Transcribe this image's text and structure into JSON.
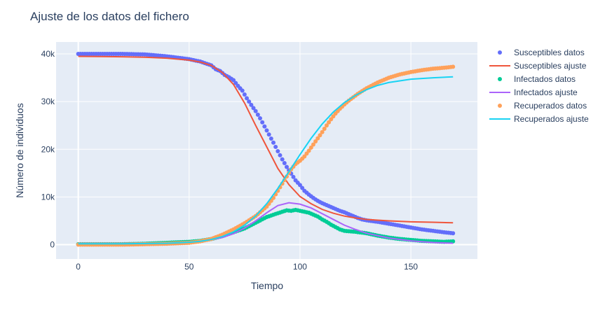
{
  "chart_data": {
    "type": "scatter",
    "title": "Ajuste de los datos del fichero",
    "xlabel": "Tiempo",
    "ylabel": "Número de individuos",
    "xlim": [
      -10,
      180
    ],
    "ylim": [
      -3000,
      42500
    ],
    "x_ticks": [
      0,
      50,
      100,
      150
    ],
    "x_tick_labels": [
      "0",
      "50",
      "100",
      "150"
    ],
    "y_ticks": [
      0,
      10000,
      20000,
      30000,
      40000
    ],
    "y_tick_labels": [
      "0",
      "10k",
      "20k",
      "30k",
      "40k"
    ],
    "grid": true,
    "legend_position": "right",
    "series": [
      {
        "name": "Susceptibles datos",
        "mode": "markers",
        "color": "#636efa",
        "x": [
          0,
          10,
          20,
          30,
          40,
          45,
          50,
          55,
          60,
          62,
          64,
          66,
          68,
          70,
          72,
          74,
          76,
          78,
          80,
          82,
          84,
          86,
          88,
          90,
          92,
          94,
          96,
          98,
          100,
          102,
          104,
          106,
          108,
          110,
          112,
          114,
          116,
          118,
          120,
          122,
          124,
          126,
          128,
          130,
          135,
          140,
          145,
          150,
          155,
          160,
          165,
          169
        ],
        "y": [
          40000,
          40000,
          40000,
          39900,
          39500,
          39200,
          38900,
          38400,
          37600,
          36800,
          36400,
          35600,
          35100,
          34500,
          33300,
          32300,
          30700,
          29300,
          28000,
          26500,
          24800,
          23100,
          21400,
          19600,
          17900,
          16300,
          14900,
          13500,
          12500,
          11300,
          10500,
          9800,
          9200,
          8700,
          8300,
          7900,
          7500,
          7100,
          6800,
          6400,
          6000,
          5600,
          5300,
          5100,
          4800,
          4400,
          4000,
          3600,
          3200,
          2900,
          2600,
          2400
        ]
      },
      {
        "name": "Susceptibles ajuste",
        "mode": "lines",
        "color": "#ef553b",
        "x": [
          0,
          10,
          20,
          30,
          40,
          50,
          55,
          60,
          65,
          70,
          75,
          80,
          85,
          90,
          95,
          100,
          105,
          110,
          115,
          120,
          125,
          130,
          140,
          150,
          160,
          169
        ],
        "y": [
          39500,
          39450,
          39400,
          39300,
          39100,
          38700,
          38300,
          37600,
          36100,
          33600,
          29700,
          25000,
          20500,
          16000,
          12600,
          10100,
          8600,
          7400,
          6600,
          6000,
          5600,
          5300,
          5000,
          4800,
          4700,
          4600
        ]
      },
      {
        "name": "Infectados datos",
        "mode": "markers",
        "color": "#00cc96",
        "x": [
          0,
          10,
          20,
          30,
          40,
          50,
          55,
          60,
          65,
          70,
          75,
          80,
          85,
          90,
          92,
          94,
          96,
          98,
          100,
          102,
          104,
          106,
          108,
          110,
          112,
          114,
          116,
          118,
          120,
          125,
          130,
          135,
          140,
          145,
          150,
          155,
          160,
          165,
          169
        ],
        "y": [
          100,
          100,
          100,
          200,
          400,
          600,
          800,
          1200,
          1800,
          2600,
          3400,
          4600,
          5800,
          6600,
          6900,
          7200,
          7100,
          7300,
          7100,
          6900,
          6700,
          6300,
          5900,
          5300,
          4800,
          4200,
          3700,
          3200,
          2900,
          2700,
          2400,
          1900,
          1500,
          1200,
          1000,
          800,
          700,
          600,
          700
        ]
      },
      {
        "name": "Infectados ajuste",
        "mode": "lines",
        "color": "#ab63fa",
        "x": [
          0,
          20,
          40,
          50,
          55,
          60,
          65,
          70,
          75,
          80,
          85,
          90,
          95,
          100,
          105,
          110,
          115,
          120,
          125,
          130,
          140,
          150,
          160,
          169
        ],
        "y": [
          300,
          300,
          400,
          500,
          700,
          1000,
          1500,
          2300,
          3500,
          5000,
          6700,
          8200,
          8800,
          8500,
          7700,
          6500,
          5300,
          4100,
          3200,
          2400,
          1400,
          800,
          450,
          300
        ]
      },
      {
        "name": "Recuperados datos",
        "mode": "markers",
        "color": "#ffa15a",
        "x": [
          0,
          10,
          20,
          30,
          40,
          50,
          55,
          60,
          65,
          70,
          75,
          80,
          85,
          88,
          90,
          92,
          94,
          96,
          98,
          100,
          102,
          104,
          106,
          108,
          110,
          112,
          114,
          116,
          118,
          120,
          122,
          124,
          126,
          128,
          130,
          135,
          140,
          145,
          150,
          155,
          160,
          165,
          169
        ],
        "y": [
          0,
          0,
          0,
          100,
          200,
          400,
          700,
          1200,
          2100,
          3200,
          4500,
          6000,
          8000,
          9800,
          11300,
          12800,
          14300,
          15800,
          16900,
          17600,
          18500,
          19700,
          21000,
          22300,
          23600,
          25000,
          26300,
          27500,
          28500,
          29400,
          30200,
          30900,
          31600,
          32200,
          32800,
          34000,
          35000,
          35700,
          36200,
          36600,
          36900,
          37100,
          37300
        ]
      },
      {
        "name": "Recuperados ajuste",
        "mode": "lines",
        "color": "#19d3f3",
        "x": [
          0,
          20,
          40,
          50,
          55,
          60,
          65,
          70,
          75,
          80,
          85,
          90,
          95,
          100,
          105,
          110,
          115,
          120,
          125,
          130,
          135,
          140,
          150,
          160,
          169
        ],
        "y": [
          200,
          200,
          300,
          500,
          700,
          1100,
          1700,
          2700,
          4100,
          6000,
          8600,
          11800,
          15300,
          18900,
          22300,
          25300,
          27800,
          29800,
          31300,
          32500,
          33400,
          34000,
          34700,
          35000,
          35200
        ]
      }
    ]
  }
}
